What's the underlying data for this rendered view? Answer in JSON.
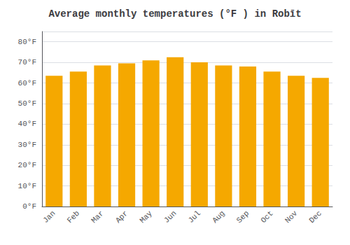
{
  "chart_data": {
    "type": "bar",
    "title": "Average monthly temperatures (°F ) in Robīt",
    "categories": [
      "Jan",
      "Feb",
      "Mar",
      "Apr",
      "May",
      "Jun",
      "Jul",
      "Aug",
      "Sep",
      "Oct",
      "Nov",
      "Dec"
    ],
    "values": [
      63.5,
      65.5,
      68.5,
      69.5,
      71.0,
      72.5,
      70.0,
      68.5,
      68.0,
      65.5,
      63.5,
      62.5
    ],
    "color": "#F5A800",
    "ylim": [
      0,
      85
    ],
    "yticks": [
      {
        "value": 0,
        "label": "0°F"
      },
      {
        "value": 10,
        "label": "10°F"
      },
      {
        "value": 20,
        "label": "20°F"
      },
      {
        "value": 30,
        "label": "30°F"
      },
      {
        "value": 40,
        "label": "40°F"
      },
      {
        "value": 50,
        "label": "50°F"
      },
      {
        "value": 60,
        "label": "60°F"
      },
      {
        "value": 70,
        "label": "70°F"
      },
      {
        "value": 80,
        "label": "80°F"
      }
    ],
    "grid": true
  }
}
